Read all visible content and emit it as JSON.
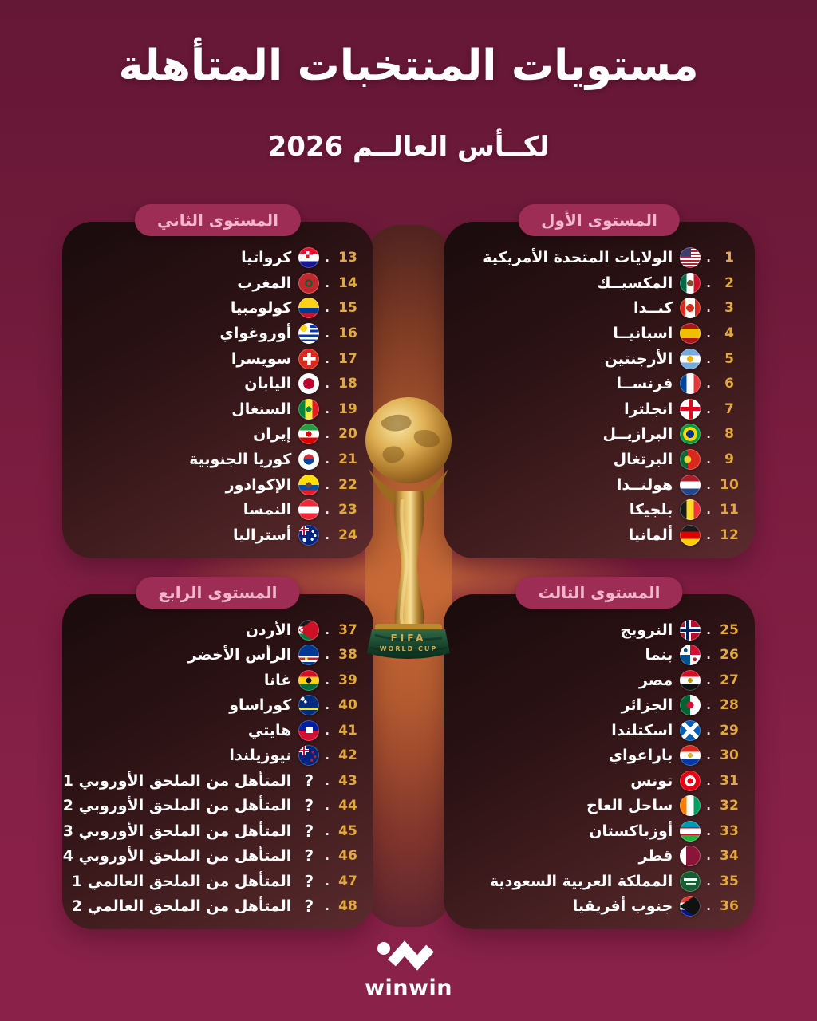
{
  "title": "مستويات المنتخبات المتأهلة",
  "subtitle": "لكــأس العالــم 2026",
  "brand": {
    "name": "winwin"
  },
  "trophy": {
    "base_line1": "FIFA",
    "base_line2": "WORLD CUP"
  },
  "colors": {
    "page_background": "#7c1d40",
    "panel_dark": "#2c1214",
    "pill_background": "#9e2d56",
    "pill_text": "#f5b5ca",
    "rank_gold": "#e2a93c",
    "team_text": "#ffffff",
    "center_glow": "#c66936"
  },
  "pots": [
    {
      "label": "المستوى الأول",
      "teams": [
        {
          "rank": "1",
          "name": "الولايات المتحدة الأمريكية",
          "flag": "usa"
        },
        {
          "rank": "2",
          "name": "المكسيــك",
          "flag": "mexico"
        },
        {
          "rank": "3",
          "name": "كنــدا",
          "flag": "canada"
        },
        {
          "rank": "4",
          "name": "اسبانيــا",
          "flag": "spain"
        },
        {
          "rank": "5",
          "name": "الأرجنتين",
          "flag": "argentina"
        },
        {
          "rank": "6",
          "name": "فرنســا",
          "flag": "france"
        },
        {
          "rank": "7",
          "name": "انجلترا",
          "flag": "england"
        },
        {
          "rank": "8",
          "name": "البرازيــل",
          "flag": "brazil"
        },
        {
          "rank": "9",
          "name": "البرتغال",
          "flag": "portugal"
        },
        {
          "rank": "10",
          "name": "هولنــدا",
          "flag": "netherlands"
        },
        {
          "rank": "11",
          "name": "بلجيكا",
          "flag": "belgium"
        },
        {
          "rank": "12",
          "name": "ألمانيا",
          "flag": "germany"
        }
      ]
    },
    {
      "label": "المستوى الثاني",
      "teams": [
        {
          "rank": "13",
          "name": "كرواتيا",
          "flag": "croatia"
        },
        {
          "rank": "14",
          "name": "المغرب",
          "flag": "morocco"
        },
        {
          "rank": "15",
          "name": "كولومبيا",
          "flag": "colombia"
        },
        {
          "rank": "16",
          "name": "أوروغواي",
          "flag": "uruguay"
        },
        {
          "rank": "17",
          "name": "سويسرا",
          "flag": "switzerland"
        },
        {
          "rank": "18",
          "name": "اليابان",
          "flag": "japan"
        },
        {
          "rank": "19",
          "name": "السنغال",
          "flag": "senegal"
        },
        {
          "rank": "20",
          "name": "إيران",
          "flag": "iran"
        },
        {
          "rank": "21",
          "name": "كوريا الجنوبية",
          "flag": "south-korea"
        },
        {
          "rank": "22",
          "name": "الإكوادور",
          "flag": "ecuador"
        },
        {
          "rank": "23",
          "name": "النمسا",
          "flag": "austria"
        },
        {
          "rank": "24",
          "name": "أستراليا",
          "flag": "australia"
        }
      ]
    },
    {
      "label": "المستوى الثالث",
      "teams": [
        {
          "rank": "25",
          "name": "النرويج",
          "flag": "norway"
        },
        {
          "rank": "26",
          "name": "بنما",
          "flag": "panama"
        },
        {
          "rank": "27",
          "name": "مصر",
          "flag": "egypt"
        },
        {
          "rank": "28",
          "name": "الجزائر",
          "flag": "algeria"
        },
        {
          "rank": "29",
          "name": "اسكتلندا",
          "flag": "scotland"
        },
        {
          "rank": "30",
          "name": "باراغواي",
          "flag": "paraguay"
        },
        {
          "rank": "31",
          "name": "تونس",
          "flag": "tunisia"
        },
        {
          "rank": "32",
          "name": "ساحل العاج",
          "flag": "ivory-coast"
        },
        {
          "rank": "33",
          "name": "أوزباكستان",
          "flag": "uzbekistan"
        },
        {
          "rank": "34",
          "name": "قطر",
          "flag": "qatar"
        },
        {
          "rank": "35",
          "name": "المملكة العربية السعودية",
          "flag": "saudi-arabia"
        },
        {
          "rank": "36",
          "name": "جنوب أفريقيا",
          "flag": "south-africa"
        }
      ]
    },
    {
      "label": "المستوى الرابع",
      "teams": [
        {
          "rank": "37",
          "name": "الأردن",
          "flag": "jordan"
        },
        {
          "rank": "38",
          "name": "الرأس الأخضر",
          "flag": "cape-verde"
        },
        {
          "rank": "39",
          "name": "غانا",
          "flag": "ghana"
        },
        {
          "rank": "40",
          "name": "كوراساو",
          "flag": "curacao"
        },
        {
          "rank": "41",
          "name": "هايتي",
          "flag": "haiti"
        },
        {
          "rank": "42",
          "name": "نيوزيلندا",
          "flag": "new-zealand"
        },
        {
          "rank": "43",
          "name": "المتأهل من الملحق الأوروبي 1",
          "flag": "question"
        },
        {
          "rank": "44",
          "name": "المتأهل من الملحق الأوروبي 2",
          "flag": "question"
        },
        {
          "rank": "45",
          "name": "المتأهل من الملحق الأوروبي 3",
          "flag": "question"
        },
        {
          "rank": "46",
          "name": "المتأهل من الملحق الأوروبي 4",
          "flag": "question"
        },
        {
          "rank": "47",
          "name": "المتأهل من الملحق العالمي  1",
          "flag": "question"
        },
        {
          "rank": "48",
          "name": "المتأهل من الملحق العالمي  2",
          "flag": "question"
        }
      ]
    }
  ]
}
